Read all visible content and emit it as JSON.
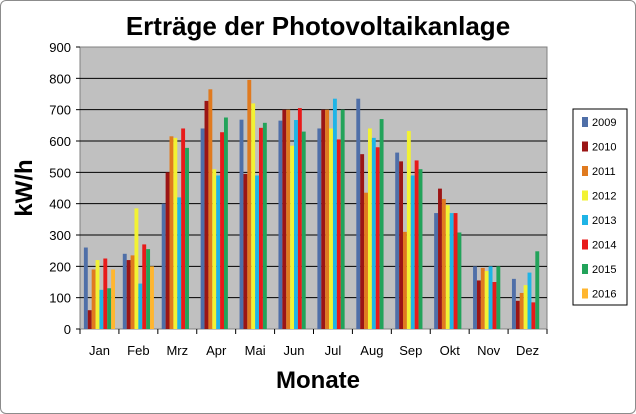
{
  "chart_data": {
    "type": "bar",
    "title": "Erträge der Photovoltaikanlage",
    "xlabel": "Monate",
    "ylabel": "kW/h",
    "ylim": [
      0,
      900
    ],
    "yticks": [
      "0",
      "100",
      "200",
      "300",
      "400",
      "500",
      "600",
      "700",
      "800",
      "900"
    ],
    "grid": true,
    "legend_position": "right",
    "plot_background": "#c0c0c0",
    "categories": [
      "Jan",
      "Feb",
      "Mrz",
      "Apr",
      "Mai",
      "Jun",
      "Jul",
      "Aug",
      "Sep",
      "Okt",
      "Nov",
      "Dez"
    ],
    "series": [
      {
        "name": "2009",
        "color": "#4f6fa8",
        "values": [
          260,
          240,
          400,
          640,
          668,
          665,
          640,
          735,
          563,
          370,
          200,
          160
        ]
      },
      {
        "name": "2010",
        "color": "#9b1515",
        "values": [
          60,
          220,
          500,
          728,
          495,
          700,
          700,
          558,
          535,
          448,
          155,
          90
        ]
      },
      {
        "name": "2011",
        "color": "#e07a1f",
        "values": [
          190,
          235,
          615,
          765,
          795,
          700,
          700,
          435,
          310,
          415,
          195,
          115
        ]
      },
      {
        "name": "2012",
        "color": "#f2f233",
        "values": [
          220,
          385,
          610,
          510,
          720,
          585,
          640,
          640,
          632,
          395,
          185,
          140
        ]
      },
      {
        "name": "2013",
        "color": "#1fb4e6",
        "values": [
          125,
          145,
          420,
          490,
          490,
          667,
          735,
          610,
          490,
          370,
          200,
          180
        ]
      },
      {
        "name": "2014",
        "color": "#e81a1a",
        "values": [
          225,
          270,
          640,
          628,
          642,
          705,
          605,
          580,
          538,
          370,
          150,
          85
        ]
      },
      {
        "name": "2015",
        "color": "#22a35a",
        "values": [
          130,
          255,
          578,
          675,
          658,
          630,
          700,
          670,
          510,
          308,
          200,
          248
        ]
      },
      {
        "name": "2016",
        "color": "#ffb62f",
        "values": [
          190,
          200,
          0,
          0,
          0,
          0,
          0,
          0,
          0,
          0,
          0,
          0
        ]
      }
    ]
  }
}
